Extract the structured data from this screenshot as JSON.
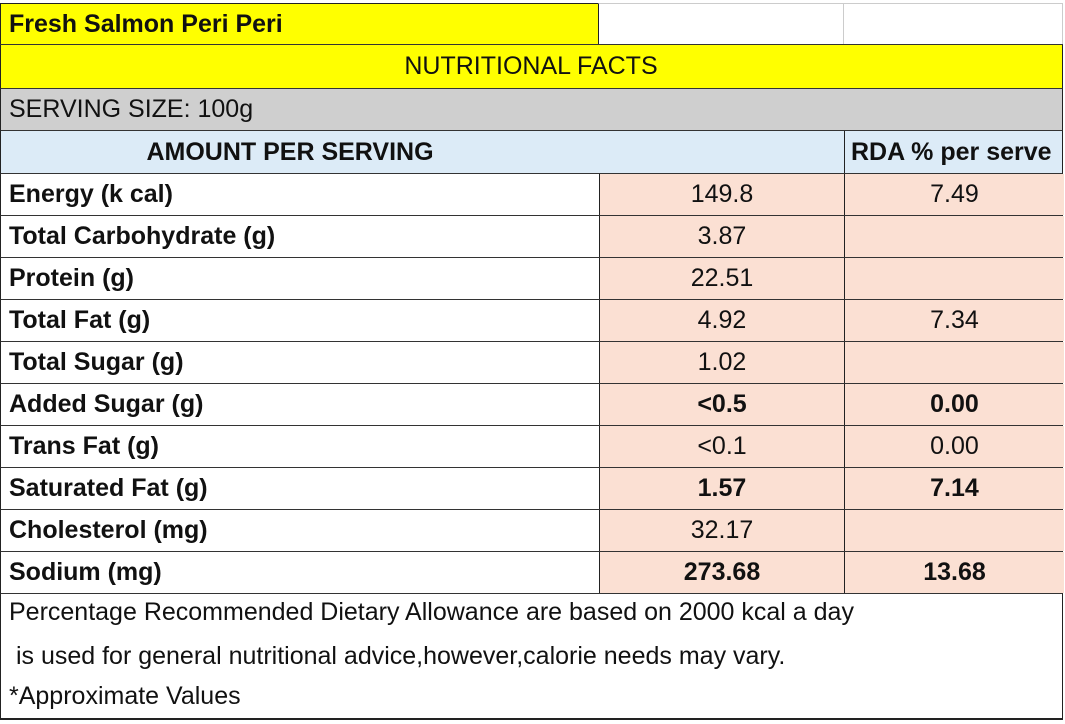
{
  "product_title": "Fresh Salmon Peri Peri",
  "section_title": "NUTRITIONAL FACTS",
  "serving_size": "SERVING SIZE: 100g",
  "header": {
    "amount": "AMOUNT PER SERVING",
    "rda": "RDA % per serve"
  },
  "rows": [
    {
      "name": "Energy (k cal)",
      "amount": "149.8",
      "rda": "7.49",
      "bold": false
    },
    {
      "name": "Total Carbohydrate (g)",
      "amount": "3.87",
      "rda": "",
      "bold": false
    },
    {
      "name": "Protein (g)",
      "amount": "22.51",
      "rda": "",
      "bold": false
    },
    {
      "name": "Total Fat (g)",
      "amount": "4.92",
      "rda": "7.34",
      "bold": false
    },
    {
      "name": "Total Sugar (g)",
      "amount": "1.02",
      "rda": "",
      "bold": false
    },
    {
      "name": "Added Sugar (g)",
      "amount": "<0.5",
      "rda": "0.00",
      "bold": true
    },
    {
      "name": "Trans Fat (g)",
      "amount": "<0.1",
      "rda": "0.00",
      "bold": false
    },
    {
      "name": "Saturated Fat (g)",
      "amount": "1.57",
      "rda": "7.14",
      "bold": true
    },
    {
      "name": "Cholesterol (mg)",
      "amount": "32.17",
      "rda": "",
      "bold": false
    },
    {
      "name": "Sodium (mg)",
      "amount": "273.68",
      "rda": "13.68",
      "bold": true
    }
  ],
  "footnote": {
    "line1": "Percentage Recommended Dietary Allowance are based on 2000 kcal a day",
    "line2": " is used for general nutritional advice,however,calorie needs may vary.",
    "line3": "*Approximate Values"
  },
  "colors": {
    "title_yellow": "#ffff00",
    "serving_gray": "#cfcfcf",
    "header_blue": "#dcebf7",
    "value_peach": "#fbe0d3"
  }
}
